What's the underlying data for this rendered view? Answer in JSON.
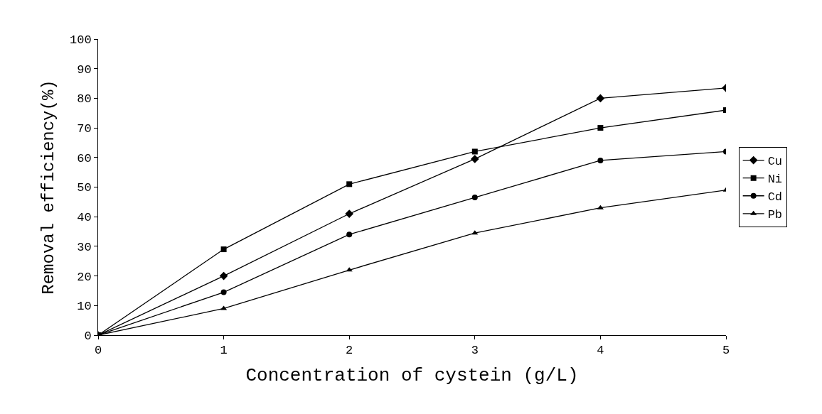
{
  "chart_data": {
    "type": "line",
    "xlabel": "Concentration of cystein (g/L)",
    "ylabel": "Removal efficiency(%)",
    "x": [
      0,
      1,
      2,
      3,
      4,
      5
    ],
    "series": [
      {
        "name": "Cu",
        "color": "#000000",
        "marker": "diamond",
        "values": [
          0,
          20,
          41,
          59.5,
          80,
          83.5
        ]
      },
      {
        "name": "Ni",
        "color": "#000000",
        "marker": "square",
        "values": [
          0,
          29,
          51,
          62,
          70,
          76
        ]
      },
      {
        "name": "Cd",
        "color": "#000000",
        "marker": "circle",
        "values": [
          0,
          14.5,
          34,
          46.5,
          59,
          62
        ]
      },
      {
        "name": "Pb",
        "color": "#000000",
        "marker": "triangle",
        "values": [
          0,
          9,
          22,
          34.5,
          43,
          49
        ]
      }
    ],
    "xlim": [
      0,
      5
    ],
    "xticks": [
      0,
      1,
      2,
      3,
      4,
      5
    ],
    "ylim": [
      0,
      100
    ],
    "yticks": [
      0,
      10,
      20,
      30,
      40,
      50,
      60,
      70,
      80,
      90,
      100
    ],
    "legend": "right",
    "line_style": "solid"
  }
}
